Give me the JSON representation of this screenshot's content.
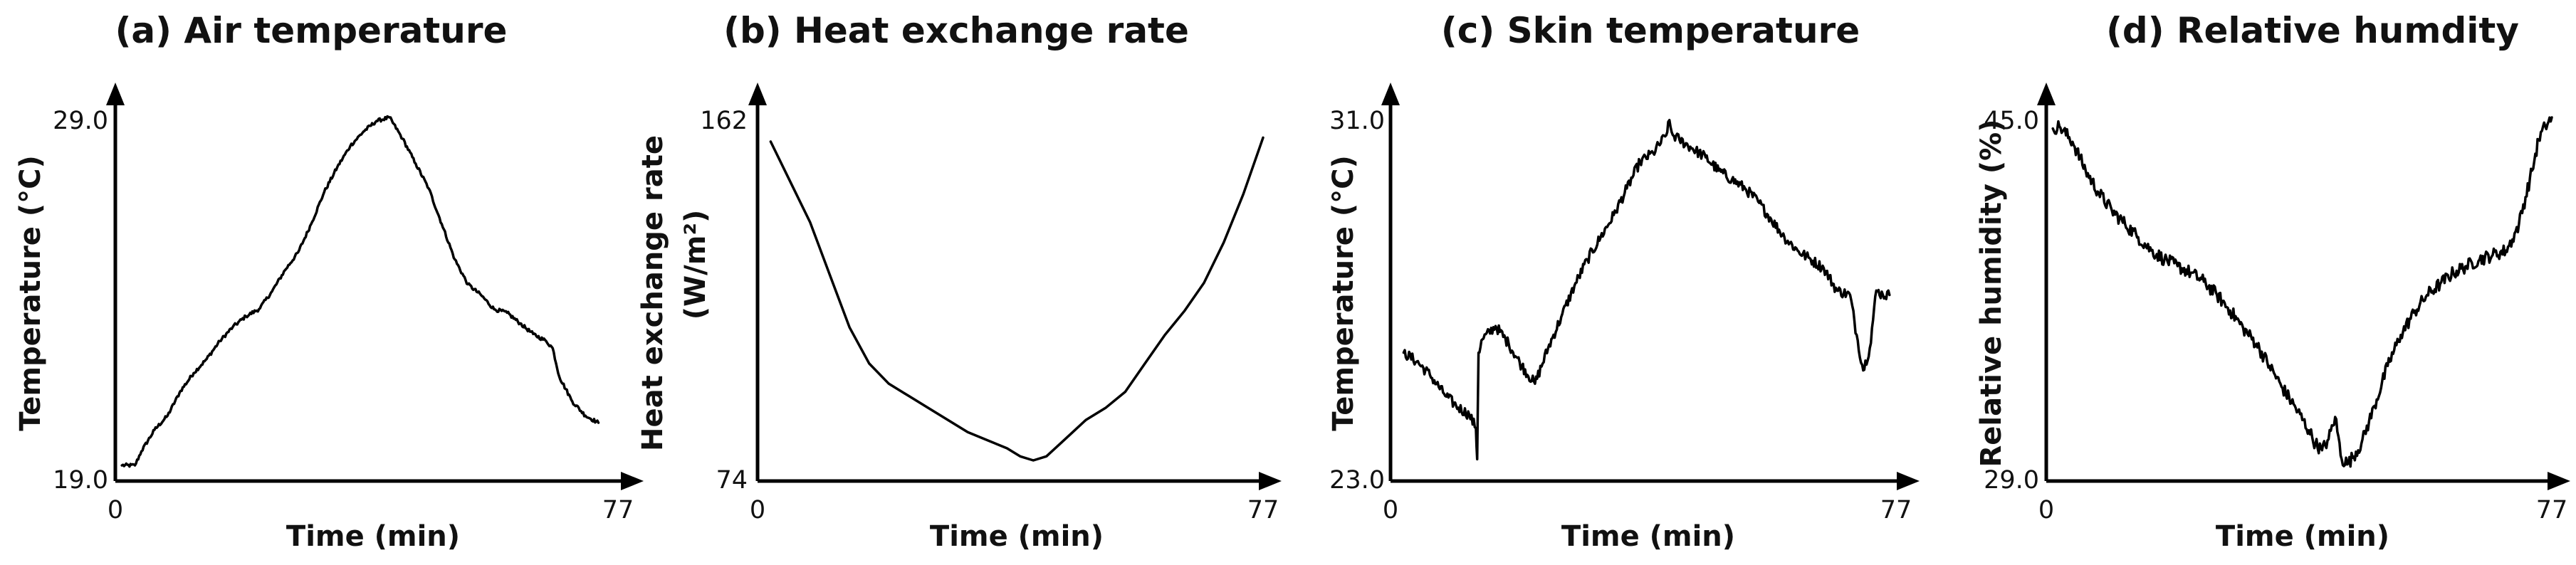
{
  "chart_data": [
    {
      "type": "line",
      "title": "(a) Air temperature",
      "xlabel": "Time (min)",
      "ylabel": "Temperature (°C)",
      "xlim": [
        0,
        77
      ],
      "ylim": [
        19.0,
        29.0
      ],
      "x_ticks": [
        "0",
        "77"
      ],
      "y_ticks": [
        "19.0",
        "29.0"
      ],
      "noise": 0.05,
      "series": [
        {
          "name": "Air temperature",
          "x": [
            1,
            3,
            4,
            6,
            8,
            10,
            12,
            14,
            16,
            18,
            20,
            22,
            24,
            26,
            28,
            30,
            32,
            34,
            36,
            38,
            40,
            42,
            44,
            46,
            48,
            50,
            52,
            54,
            56,
            58,
            60,
            62,
            64,
            66,
            67,
            68,
            70,
            72,
            74
          ],
          "y": [
            19.2,
            19.2,
            19.6,
            20.2,
            20.6,
            21.3,
            21.8,
            22.2,
            22.7,
            23.1,
            23.4,
            23.6,
            24.1,
            24.7,
            25.2,
            26.0,
            26.9,
            27.6,
            28.2,
            28.6,
            28.9,
            29.0,
            28.4,
            27.7,
            27.0,
            26.0,
            25.0,
            24.3,
            24.0,
            23.6,
            23.5,
            23.2,
            22.9,
            22.7,
            22.5,
            21.7,
            21.0,
            20.6,
            20.4
          ]
        }
      ]
    },
    {
      "type": "line",
      "title": "(b) Heat exchange rate",
      "xlabel": "Time (min)",
      "ylabel": "Heat exchange rate",
      "ylabel2": "(W/m²)",
      "xlim": [
        0,
        77
      ],
      "ylim": [
        74,
        162
      ],
      "x_ticks": [
        "0",
        "77"
      ],
      "y_ticks": [
        "74",
        "162"
      ],
      "noise": 0,
      "series": [
        {
          "name": "Heat exchange rate",
          "x": [
            2,
            5,
            8,
            11,
            14,
            17,
            20,
            23,
            26,
            29,
            32,
            35,
            38,
            40,
            42,
            44,
            46,
            48,
            50,
            53,
            56,
            59,
            62,
            65,
            68,
            71,
            74,
            77
          ],
          "y": [
            156,
            146,
            136,
            123,
            110,
            101,
            96,
            93,
            90,
            87,
            84,
            82,
            80,
            78,
            77,
            78,
            81,
            84,
            87,
            90,
            94,
            101,
            108,
            114,
            121,
            131,
            143,
            157
          ]
        }
      ]
    },
    {
      "type": "line",
      "title": "(c) Skin temperature",
      "xlabel": "Time (min)",
      "ylabel": "Temperature (°C)",
      "xlim": [
        0,
        77
      ],
      "ylim": [
        23.0,
        31.0
      ],
      "x_ticks": [
        "0",
        "77"
      ],
      "y_ticks": [
        "23.0",
        "31.0"
      ],
      "noise": 0.12,
      "series": [
        {
          "name": "Skin temperature",
          "x": [
            2,
            4,
            6,
            8,
            10,
            12,
            13,
            13.2,
            13.4,
            14,
            16,
            18,
            20,
            22,
            24,
            26,
            28,
            30,
            32,
            34,
            36,
            38,
            40,
            42,
            42.3,
            43,
            44,
            46,
            48,
            50,
            52,
            54,
            56,
            58,
            60,
            62,
            64,
            66,
            68,
            70,
            71,
            72,
            73,
            74,
            75,
            76
          ],
          "y": [
            25.7,
            25.5,
            25.2,
            24.8,
            24.5,
            24.3,
            24.0,
            23.3,
            25.7,
            26.0,
            26.3,
            25.9,
            25.4,
            25.0,
            25.8,
            26.5,
            27.2,
            27.8,
            28.3,
            28.8,
            29.4,
            30.0,
            30.2,
            30.6,
            30.9,
            30.6,
            30.5,
            30.3,
            30.1,
            29.8,
            29.6,
            29.4,
            29.1,
            28.7,
            28.3,
            28.0,
            27.8,
            27.6,
            27.1,
            27.0,
            26.1,
            25.3,
            25.8,
            27.1,
            27.0,
            27.0
          ]
        }
      ]
    },
    {
      "type": "line",
      "title": "(d) Relative humdity",
      "xlabel": "Time (min)",
      "ylabel": "Relative humidity (%)",
      "xlim": [
        0,
        77
      ],
      "ylim": [
        29.0,
        45.0
      ],
      "x_ticks": [
        "0",
        "77"
      ],
      "y_ticks": [
        "29.0",
        "45.0"
      ],
      "noise": 0.3,
      "series": [
        {
          "name": "Relative humidity",
          "x": [
            1,
            2,
            4,
            6,
            8,
            10,
            12,
            14,
            16,
            18,
            20,
            22,
            24,
            26,
            28,
            30,
            32,
            34,
            36,
            38,
            40,
            41,
            42,
            43,
            44,
            45,
            46,
            48,
            50,
            52,
            54,
            56,
            58,
            60,
            62,
            64,
            66,
            68,
            70,
            71,
            72,
            74,
            75,
            76,
            77
          ],
          "y": [
            44.5,
            44.6,
            43.9,
            42.6,
            41.6,
            40.8,
            40.2,
            39.6,
            39.0,
            38.6,
            38.3,
            38.0,
            37.6,
            37.0,
            36.3,
            35.5,
            34.8,
            33.8,
            32.8,
            31.9,
            30.9,
            30.3,
            30.0,
            30.5,
            31.5,
            29.6,
            29.4,
            30.3,
            32.0,
            33.8,
            35.2,
            36.2,
            37.0,
            37.5,
            38.0,
            38.3,
            38.6,
            38.8,
            39.0,
            39.5,
            40.2,
            42.6,
            44.0,
            44.6,
            45.0
          ]
        }
      ]
    }
  ]
}
